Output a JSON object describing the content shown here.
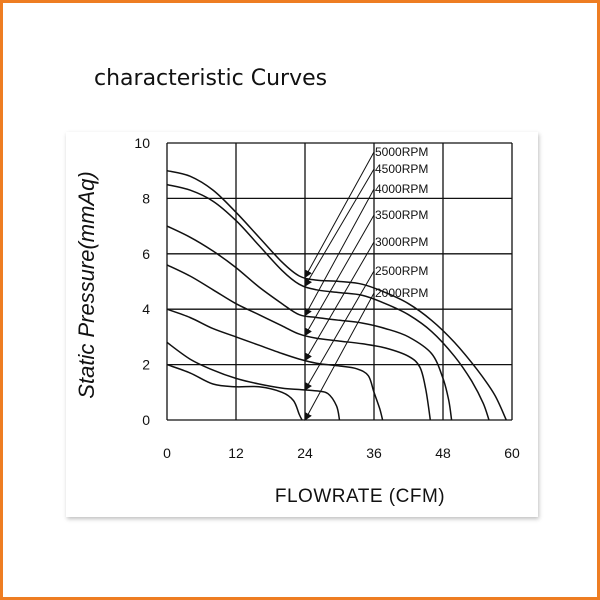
{
  "page": {
    "heading": "characteristic Curves",
    "frame_color": "#ee7d22",
    "line_color": "#111111"
  },
  "chart_data": {
    "type": "line",
    "title": "characteristic Curves",
    "xlabel": "FLOWRATE (CFM)",
    "ylabel": "Static  Pressure(mmAq)",
    "xlim": [
      0,
      60
    ],
    "ylim": [
      0,
      10
    ],
    "x_ticks": [
      0,
      12,
      24,
      36,
      48,
      60
    ],
    "y_ticks": [
      0,
      2,
      4,
      6,
      8,
      10
    ],
    "grid": true,
    "legend_placement": "top-center, labels with leader arrows",
    "series": [
      {
        "name": "5000RPM",
        "points": [
          [
            0,
            9.0
          ],
          [
            4,
            8.8
          ],
          [
            8,
            8.3
          ],
          [
            12,
            7.5
          ],
          [
            16,
            6.6
          ],
          [
            20,
            5.7
          ],
          [
            23,
            5.2
          ],
          [
            26,
            5.05
          ],
          [
            30,
            5.0
          ],
          [
            34,
            4.9
          ],
          [
            38,
            4.6
          ],
          [
            42,
            4.2
          ],
          [
            46,
            3.6
          ],
          [
            50,
            2.8
          ],
          [
            54,
            1.8
          ],
          [
            57,
            0.9
          ],
          [
            59,
            0.0
          ]
        ]
      },
      {
        "name": "4500RPM",
        "points": [
          [
            0,
            8.5
          ],
          [
            4,
            8.3
          ],
          [
            8,
            7.9
          ],
          [
            12,
            7.2
          ],
          [
            16,
            6.3
          ],
          [
            20,
            5.4
          ],
          [
            23,
            4.9
          ],
          [
            26,
            4.7
          ],
          [
            30,
            4.6
          ],
          [
            34,
            4.5
          ],
          [
            38,
            4.2
          ],
          [
            42,
            3.8
          ],
          [
            46,
            3.2
          ],
          [
            50,
            2.3
          ],
          [
            53,
            1.4
          ],
          [
            55,
            0.6
          ],
          [
            56,
            0.0
          ]
        ]
      },
      {
        "name": "4000RPM",
        "points": [
          [
            0,
            7.0
          ],
          [
            4,
            6.6
          ],
          [
            8,
            6.1
          ],
          [
            12,
            5.5
          ],
          [
            16,
            4.8
          ],
          [
            20,
            4.2
          ],
          [
            23,
            3.8
          ],
          [
            26,
            3.7
          ],
          [
            30,
            3.6
          ],
          [
            34,
            3.5
          ],
          [
            38,
            3.3
          ],
          [
            42,
            3.0
          ],
          [
            46,
            2.4
          ],
          [
            48,
            1.5
          ],
          [
            49,
            0.7
          ],
          [
            49.5,
            0.0
          ]
        ]
      },
      {
        "name": "3500RPM",
        "points": [
          [
            0,
            5.6
          ],
          [
            4,
            5.2
          ],
          [
            8,
            4.7
          ],
          [
            12,
            4.2
          ],
          [
            16,
            3.8
          ],
          [
            20,
            3.4
          ],
          [
            23,
            3.1
          ],
          [
            26,
            2.95
          ],
          [
            30,
            2.85
          ],
          [
            34,
            2.75
          ],
          [
            38,
            2.6
          ],
          [
            42,
            2.3
          ],
          [
            44,
            1.9
          ],
          [
            45,
            1.1
          ],
          [
            45.8,
            0.0
          ]
        ]
      },
      {
        "name": "3000RPM",
        "points": [
          [
            0,
            4.0
          ],
          [
            4,
            3.7
          ],
          [
            8,
            3.3
          ],
          [
            12,
            3.0
          ],
          [
            16,
            2.7
          ],
          [
            20,
            2.4
          ],
          [
            23,
            2.2
          ],
          [
            26,
            2.05
          ],
          [
            30,
            1.95
          ],
          [
            33,
            1.85
          ],
          [
            35,
            1.6
          ],
          [
            36,
            1.0
          ],
          [
            37,
            0.4
          ],
          [
            37.5,
            0.0
          ]
        ]
      },
      {
        "name": "2500RPM",
        "points": [
          [
            0,
            2.8
          ],
          [
            4,
            2.2
          ],
          [
            8,
            1.8
          ],
          [
            12,
            1.5
          ],
          [
            16,
            1.3
          ],
          [
            20,
            1.15
          ],
          [
            23,
            1.1
          ],
          [
            26,
            1.05
          ],
          [
            28,
            0.95
          ],
          [
            29.5,
            0.5
          ],
          [
            30,
            0.0
          ]
        ]
      },
      {
        "name": "2000RPM",
        "points": [
          [
            0,
            2.0
          ],
          [
            4,
            1.7
          ],
          [
            8,
            1.3
          ],
          [
            12,
            1.2
          ],
          [
            16,
            1.2
          ],
          [
            20,
            1.0
          ],
          [
            22,
            0.7
          ],
          [
            23,
            0.2
          ],
          [
            23.5,
            0.0
          ]
        ]
      }
    ]
  }
}
